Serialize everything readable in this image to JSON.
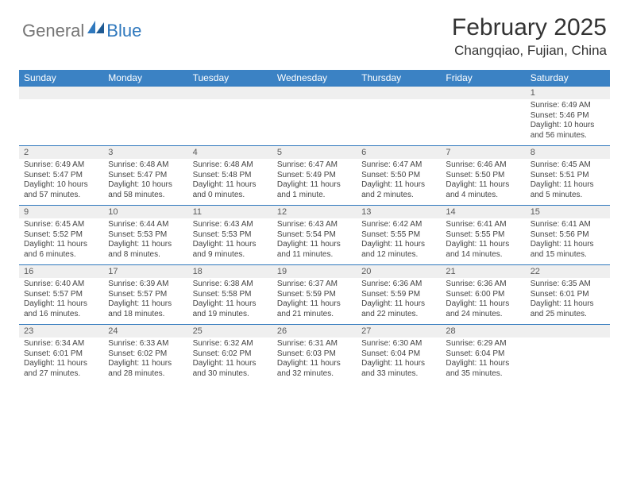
{
  "brand": {
    "part1": "General",
    "part2": "Blue"
  },
  "title": "February 2025",
  "location": "Changqiao, Fujian, China",
  "colors": {
    "header_bar": "#3b82c4",
    "band_bg": "#efefef",
    "band_border": "#2f78bd",
    "text": "#333333",
    "logo_gray": "#757575",
    "logo_blue": "#2f78bd"
  },
  "days_of_week": [
    "Sunday",
    "Monday",
    "Tuesday",
    "Wednesday",
    "Thursday",
    "Friday",
    "Saturday"
  ],
  "weeks": [
    [
      {
        "n": "",
        "sr": "",
        "ss": "",
        "dl": ""
      },
      {
        "n": "",
        "sr": "",
        "ss": "",
        "dl": ""
      },
      {
        "n": "",
        "sr": "",
        "ss": "",
        "dl": ""
      },
      {
        "n": "",
        "sr": "",
        "ss": "",
        "dl": ""
      },
      {
        "n": "",
        "sr": "",
        "ss": "",
        "dl": ""
      },
      {
        "n": "",
        "sr": "",
        "ss": "",
        "dl": ""
      },
      {
        "n": "1",
        "sr": "Sunrise: 6:49 AM",
        "ss": "Sunset: 5:46 PM",
        "dl": "Daylight: 10 hours and 56 minutes."
      }
    ],
    [
      {
        "n": "2",
        "sr": "Sunrise: 6:49 AM",
        "ss": "Sunset: 5:47 PM",
        "dl": "Daylight: 10 hours and 57 minutes."
      },
      {
        "n": "3",
        "sr": "Sunrise: 6:48 AM",
        "ss": "Sunset: 5:47 PM",
        "dl": "Daylight: 10 hours and 58 minutes."
      },
      {
        "n": "4",
        "sr": "Sunrise: 6:48 AM",
        "ss": "Sunset: 5:48 PM",
        "dl": "Daylight: 11 hours and 0 minutes."
      },
      {
        "n": "5",
        "sr": "Sunrise: 6:47 AM",
        "ss": "Sunset: 5:49 PM",
        "dl": "Daylight: 11 hours and 1 minute."
      },
      {
        "n": "6",
        "sr": "Sunrise: 6:47 AM",
        "ss": "Sunset: 5:50 PM",
        "dl": "Daylight: 11 hours and 2 minutes."
      },
      {
        "n": "7",
        "sr": "Sunrise: 6:46 AM",
        "ss": "Sunset: 5:50 PM",
        "dl": "Daylight: 11 hours and 4 minutes."
      },
      {
        "n": "8",
        "sr": "Sunrise: 6:45 AM",
        "ss": "Sunset: 5:51 PM",
        "dl": "Daylight: 11 hours and 5 minutes."
      }
    ],
    [
      {
        "n": "9",
        "sr": "Sunrise: 6:45 AM",
        "ss": "Sunset: 5:52 PM",
        "dl": "Daylight: 11 hours and 6 minutes."
      },
      {
        "n": "10",
        "sr": "Sunrise: 6:44 AM",
        "ss": "Sunset: 5:53 PM",
        "dl": "Daylight: 11 hours and 8 minutes."
      },
      {
        "n": "11",
        "sr": "Sunrise: 6:43 AM",
        "ss": "Sunset: 5:53 PM",
        "dl": "Daylight: 11 hours and 9 minutes."
      },
      {
        "n": "12",
        "sr": "Sunrise: 6:43 AM",
        "ss": "Sunset: 5:54 PM",
        "dl": "Daylight: 11 hours and 11 minutes."
      },
      {
        "n": "13",
        "sr": "Sunrise: 6:42 AM",
        "ss": "Sunset: 5:55 PM",
        "dl": "Daylight: 11 hours and 12 minutes."
      },
      {
        "n": "14",
        "sr": "Sunrise: 6:41 AM",
        "ss": "Sunset: 5:55 PM",
        "dl": "Daylight: 11 hours and 14 minutes."
      },
      {
        "n": "15",
        "sr": "Sunrise: 6:41 AM",
        "ss": "Sunset: 5:56 PM",
        "dl": "Daylight: 11 hours and 15 minutes."
      }
    ],
    [
      {
        "n": "16",
        "sr": "Sunrise: 6:40 AM",
        "ss": "Sunset: 5:57 PM",
        "dl": "Daylight: 11 hours and 16 minutes."
      },
      {
        "n": "17",
        "sr": "Sunrise: 6:39 AM",
        "ss": "Sunset: 5:57 PM",
        "dl": "Daylight: 11 hours and 18 minutes."
      },
      {
        "n": "18",
        "sr": "Sunrise: 6:38 AM",
        "ss": "Sunset: 5:58 PM",
        "dl": "Daylight: 11 hours and 19 minutes."
      },
      {
        "n": "19",
        "sr": "Sunrise: 6:37 AM",
        "ss": "Sunset: 5:59 PM",
        "dl": "Daylight: 11 hours and 21 minutes."
      },
      {
        "n": "20",
        "sr": "Sunrise: 6:36 AM",
        "ss": "Sunset: 5:59 PM",
        "dl": "Daylight: 11 hours and 22 minutes."
      },
      {
        "n": "21",
        "sr": "Sunrise: 6:36 AM",
        "ss": "Sunset: 6:00 PM",
        "dl": "Daylight: 11 hours and 24 minutes."
      },
      {
        "n": "22",
        "sr": "Sunrise: 6:35 AM",
        "ss": "Sunset: 6:01 PM",
        "dl": "Daylight: 11 hours and 25 minutes."
      }
    ],
    [
      {
        "n": "23",
        "sr": "Sunrise: 6:34 AM",
        "ss": "Sunset: 6:01 PM",
        "dl": "Daylight: 11 hours and 27 minutes."
      },
      {
        "n": "24",
        "sr": "Sunrise: 6:33 AM",
        "ss": "Sunset: 6:02 PM",
        "dl": "Daylight: 11 hours and 28 minutes."
      },
      {
        "n": "25",
        "sr": "Sunrise: 6:32 AM",
        "ss": "Sunset: 6:02 PM",
        "dl": "Daylight: 11 hours and 30 minutes."
      },
      {
        "n": "26",
        "sr": "Sunrise: 6:31 AM",
        "ss": "Sunset: 6:03 PM",
        "dl": "Daylight: 11 hours and 32 minutes."
      },
      {
        "n": "27",
        "sr": "Sunrise: 6:30 AM",
        "ss": "Sunset: 6:04 PM",
        "dl": "Daylight: 11 hours and 33 minutes."
      },
      {
        "n": "28",
        "sr": "Sunrise: 6:29 AM",
        "ss": "Sunset: 6:04 PM",
        "dl": "Daylight: 11 hours and 35 minutes."
      },
      {
        "n": "",
        "sr": "",
        "ss": "",
        "dl": ""
      }
    ]
  ]
}
